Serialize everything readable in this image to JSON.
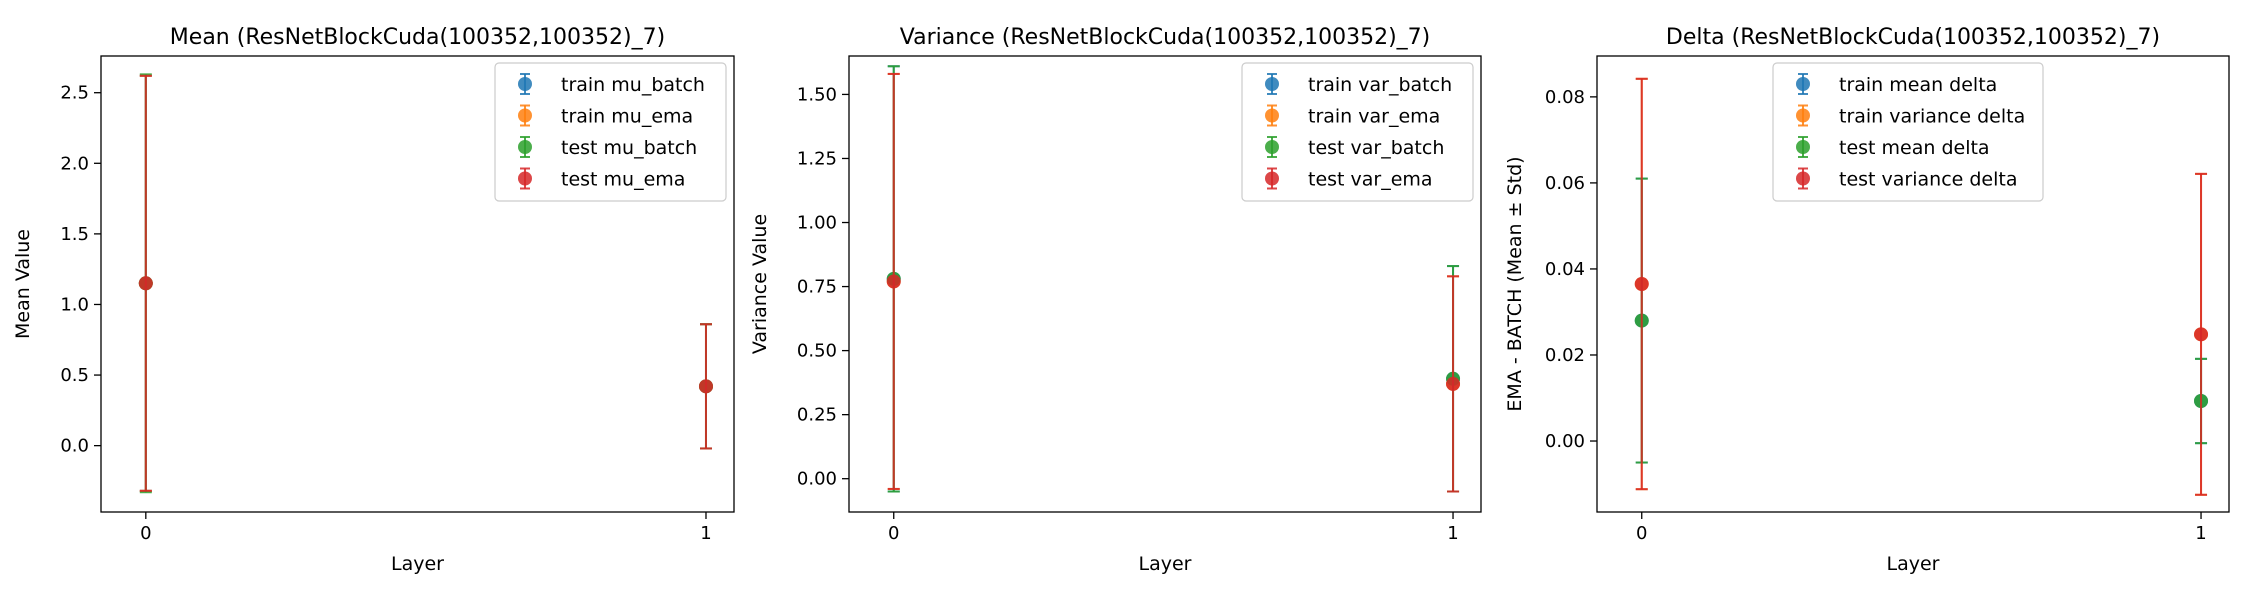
{
  "figure": {
    "background": "#ffffff"
  },
  "chart_data": [
    {
      "type": "scatter",
      "title": "Mean (ResNetBlockCuda(100352,100352)_7)",
      "xlabel": "Layer",
      "ylabel": "Mean Value",
      "x": [
        0,
        1
      ],
      "xticks": [
        "0",
        "1"
      ],
      "xlim": [
        -0.08,
        1.05
      ],
      "ylim": [
        -0.47,
        2.76
      ],
      "yticks": [
        "0.0",
        "0.5",
        "1.0",
        "1.5",
        "2.0",
        "2.5"
      ],
      "ytick_values": [
        0.0,
        0.5,
        1.0,
        1.5,
        2.0,
        2.5
      ],
      "legend_position": "upper-right",
      "series": [
        {
          "name": "train mu_batch",
          "color": "#1f77b4",
          "values": [
            1.15,
            0.42
          ],
          "errors": [
            1.47,
            0.44
          ]
        },
        {
          "name": "train mu_ema",
          "color": "#ff7f0e",
          "values": [
            1.15,
            0.42
          ],
          "errors": [
            1.47,
            0.44
          ]
        },
        {
          "name": "test mu_batch",
          "color": "#2ca02c",
          "values": [
            1.15,
            0.42
          ],
          "errors": [
            1.48,
            0.44
          ]
        },
        {
          "name": "test mu_ema",
          "color": "#d62728",
          "values": [
            1.15,
            0.42
          ],
          "errors": [
            1.47,
            0.44
          ]
        }
      ]
    },
    {
      "type": "scatter",
      "title": "Variance (ResNetBlockCuda(100352,100352)_7)",
      "xlabel": "Layer",
      "ylabel": "Variance Value",
      "x": [
        0,
        1
      ],
      "xticks": [
        "0",
        "1"
      ],
      "xlim": [
        -0.08,
        1.05
      ],
      "ylim": [
        -0.13,
        1.65
      ],
      "yticks": [
        "0.00",
        "0.25",
        "0.50",
        "0.75",
        "1.00",
        "1.25",
        "1.50"
      ],
      "ytick_values": [
        0.0,
        0.25,
        0.5,
        0.75,
        1.0,
        1.25,
        1.5
      ],
      "legend_position": "upper-right",
      "series": [
        {
          "name": "train var_batch",
          "color": "#1f77b4",
          "values": [
            0.78,
            0.39
          ],
          "errors": [
            0.83,
            0.44
          ]
        },
        {
          "name": "train var_ema",
          "color": "#ff7f0e",
          "values": [
            0.77,
            0.37
          ],
          "errors": [
            0.81,
            0.42
          ]
        },
        {
          "name": "test var_batch",
          "color": "#2ca02c",
          "values": [
            0.78,
            0.39
          ],
          "errors": [
            0.83,
            0.44
          ]
        },
        {
          "name": "test var_ema",
          "color": "#d62728",
          "values": [
            0.77,
            0.37
          ],
          "errors": [
            0.81,
            0.42
          ]
        }
      ]
    },
    {
      "type": "scatter",
      "title": "Delta (ResNetBlockCuda(100352,100352)_7)",
      "xlabel": "Layer",
      "ylabel": "EMA - BATCH (Mean ± Std)",
      "x": [
        0,
        1
      ],
      "xticks": [
        "0",
        "1"
      ],
      "xlim": [
        -0.08,
        1.05
      ],
      "ylim": [
        -0.0165,
        0.0895
      ],
      "yticks": [
        "0.00",
        "0.02",
        "0.04",
        "0.06",
        "0.08"
      ],
      "ytick_values": [
        0.0,
        0.02,
        0.04,
        0.06,
        0.08
      ],
      "legend_position": "upper-center",
      "series": [
        {
          "name": "train mean delta",
          "color": "#1f77b4",
          "values": [
            0.028,
            0.0093
          ],
          "errors": [
            0.033,
            0.0098
          ]
        },
        {
          "name": "train variance delta",
          "color": "#ff7f0e",
          "values": [
            0.0365,
            0.0248
          ],
          "errors": [
            0.0477,
            0.0373
          ]
        },
        {
          "name": "test mean delta",
          "color": "#2ca02c",
          "values": [
            0.028,
            0.0093
          ],
          "errors": [
            0.033,
            0.0098
          ]
        },
        {
          "name": "test variance delta",
          "color": "#d62728",
          "values": [
            0.0365,
            0.0248
          ],
          "errors": [
            0.0477,
            0.0373
          ]
        }
      ]
    }
  ]
}
